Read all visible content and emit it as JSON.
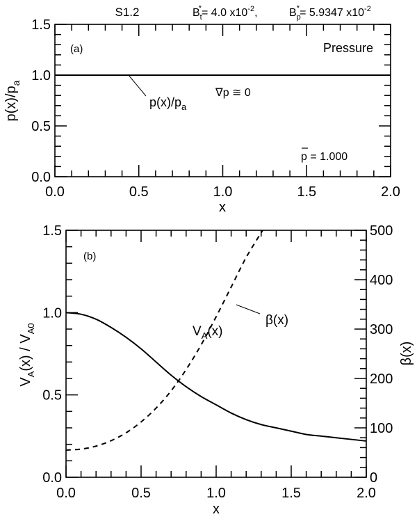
{
  "header": {
    "case_label": "S1.2",
    "bt_expr": "B*t = 4.0 x10^-2",
    "bp_expr": "B*p = 5.9347 x10^-2",
    "bt_base": "B",
    "bt_sub": "t",
    "bt_value": "= 4.0 x10",
    "bt_exp": "-2",
    "bp_base": "B",
    "bp_sub": "p",
    "bp_value": "= 5.9347 x10",
    "bp_exp": "-2"
  },
  "chart_data": [
    {
      "type": "line",
      "panel": "(a)",
      "title": "Pressure",
      "xlabel": "x",
      "ylabel": "p(x)/p_a",
      "xlim": [
        0.0,
        2.0
      ],
      "ylim": [
        0.0,
        1.5
      ],
      "xticks": [
        "0.0",
        "0.5",
        "1.0",
        "1.5",
        "2.0"
      ],
      "yticks": [
        "0.0",
        "0.5",
        "1.0",
        "1.5"
      ],
      "grid": false,
      "series": [
        {
          "name": "p(x)/p_a",
          "style": "solid",
          "x": [
            0.0,
            2.0
          ],
          "values": [
            1.0,
            1.0
          ]
        }
      ],
      "annotations": [
        "(a)",
        "Pressure",
        "p(x)/p_a",
        "∇p ≅ 0",
        "p̄ = 1.000"
      ]
    },
    {
      "type": "line",
      "panel": "(b)",
      "xlabel": "x",
      "ylabel": "V_A(x) / V_A0",
      "ylabel_right": "β(x)",
      "xlim": [
        0.0,
        2.0
      ],
      "ylim": [
        0.0,
        1.5
      ],
      "ylim_right": [
        0,
        500
      ],
      "xticks": [
        "0.0",
        "0.5",
        "1.0",
        "1.5",
        "2.0"
      ],
      "yticks": [
        "0.0",
        "0.5",
        "1.0",
        "1.5"
      ],
      "yticks_right": [
        "0",
        "100",
        "200",
        "300",
        "400",
        "500"
      ],
      "grid": false,
      "series": [
        {
          "name": "V_A(x)",
          "axis": "left",
          "style": "solid",
          "x": [
            0.0,
            0.1,
            0.2,
            0.3,
            0.4,
            0.5,
            0.6,
            0.7,
            0.8,
            0.9,
            1.0,
            1.1,
            1.2,
            1.3,
            1.4,
            1.5,
            1.6,
            1.7,
            1.8,
            1.9,
            2.0
          ],
          "values": [
            1.0,
            0.99,
            0.96,
            0.91,
            0.85,
            0.78,
            0.7,
            0.62,
            0.55,
            0.49,
            0.44,
            0.39,
            0.35,
            0.32,
            0.3,
            0.28,
            0.26,
            0.25,
            0.24,
            0.23,
            0.22
          ]
        },
        {
          "name": "β(x)",
          "axis": "right",
          "style": "dashed",
          "x": [
            0.0,
            0.1,
            0.2,
            0.3,
            0.4,
            0.5,
            0.6,
            0.7,
            0.8,
            0.9,
            1.0,
            1.1,
            1.2,
            1.31
          ],
          "values": [
            55,
            57,
            63,
            74,
            90,
            112,
            140,
            175,
            218,
            268,
            325,
            385,
            445,
            500
          ]
        }
      ],
      "annotations": [
        "(b)",
        "V_A(x)",
        "β(x)"
      ]
    }
  ],
  "labels": {
    "a": {
      "panel": "(a)",
      "title": "Pressure",
      "curve_main": "p(x)/p",
      "curve_sub": "a",
      "grad": "∇p ≅ 0",
      "pbar": "p",
      "pbar_value": " = 1.000",
      "xlabel": "x",
      "ylabel_main": "p(x)/p",
      "ylabel_sub": "a"
    },
    "b": {
      "panel": "(b)",
      "va_main": "V",
      "va_sub": "A",
      "va_tail": "(x)",
      "beta": "β(x)",
      "xlabel": "x",
      "ylabel_v1": "V",
      "ylabel_s1": "A",
      "ylabel_mid": "(x) / V",
      "ylabel_s2": "A0",
      "ylabel_right": "β(x)"
    }
  }
}
